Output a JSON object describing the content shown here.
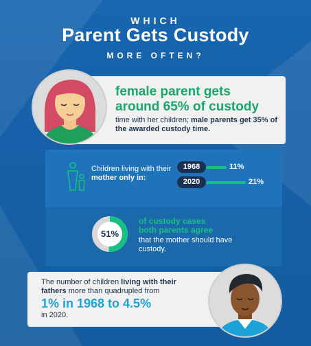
{
  "header": {
    "line1": "WHICH",
    "title": "Parent Gets Custody",
    "line3": "MORE OFTEN?"
  },
  "female": {
    "headline1": "female parent gets",
    "headline2": "around 65% of custody",
    "body_plain": "time with her children; ",
    "body_bold": "male parents get 35% of the awarded custody time.",
    "custody_share_percent": 65
  },
  "mother_only": {
    "label_plain": "Children living with their ",
    "label_bold": "mother only in:",
    "rows": [
      {
        "year": "1968",
        "value_label": "11%",
        "value": 11
      },
      {
        "year": "2020",
        "value_label": "21%",
        "value": 21
      }
    ]
  },
  "agree": {
    "donut_label": "51%",
    "donut_value": 51,
    "highlight1": "of custody cases",
    "highlight2": "both parents agree",
    "body": "that the mother should have custody."
  },
  "fathers": {
    "body_plain": "The number of children ",
    "body_bold": "living with their fathers",
    "body_plain2": " more than quadrupled from",
    "big": "1% in 1968 to 4.5%",
    "tail": "in 2020."
  },
  "colors": {
    "background": "#1560a8",
    "green": "#19c084",
    "dark_navy": "#1a2f52",
    "light_blue": "#1da2d8",
    "card": "#f1f1f1"
  },
  "icons": [
    "female-parent-avatar",
    "parent-child-icon",
    "male-parent-avatar"
  ]
}
